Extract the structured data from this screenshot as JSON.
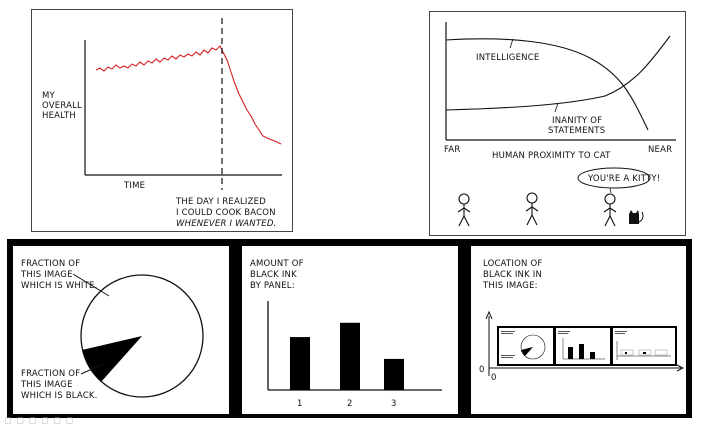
{
  "panel1": {
    "y_label": [
      "MY",
      "OVERALL",
      "HEALTH"
    ],
    "x_label": "TIME",
    "caption": [
      "THE DAY I REALIZED",
      "I COULD COOK BACON",
      "WHENEVER I WANTED."
    ]
  },
  "panel2": {
    "curve_a": "INTELLIGENCE",
    "curve_b": [
      "INANITY OF",
      "STATEMENTS"
    ],
    "axis_left": "FAR",
    "axis_title": "HUMAN PROXIMITY TO CAT",
    "axis_right": "NEAR",
    "speech": "YOU'RE A KITTY!"
  },
  "panel3": {
    "label_white": [
      "FRACTION OF",
      "THIS IMAGE",
      "WHICH IS WHITE."
    ],
    "label_black": [
      "FRACTION OF",
      "THIS IMAGE",
      "WHICH IS BLACK."
    ]
  },
  "panel4": {
    "title": [
      "AMOUNT OF",
      "BLACK INK",
      "BY PANEL:"
    ],
    "chart_data": {
      "type": "bar",
      "categories": [
        "1",
        "2",
        "3"
      ],
      "values": [
        63,
        80,
        37
      ],
      "title": "",
      "xlabel": "",
      "ylabel": ""
    }
  },
  "panel5": {
    "title": [
      "LOCATION OF",
      "BLACK INK IN",
      "THIS IMAGE:"
    ],
    "axis_zero_y": "0",
    "axis_zero_x": "0"
  }
}
